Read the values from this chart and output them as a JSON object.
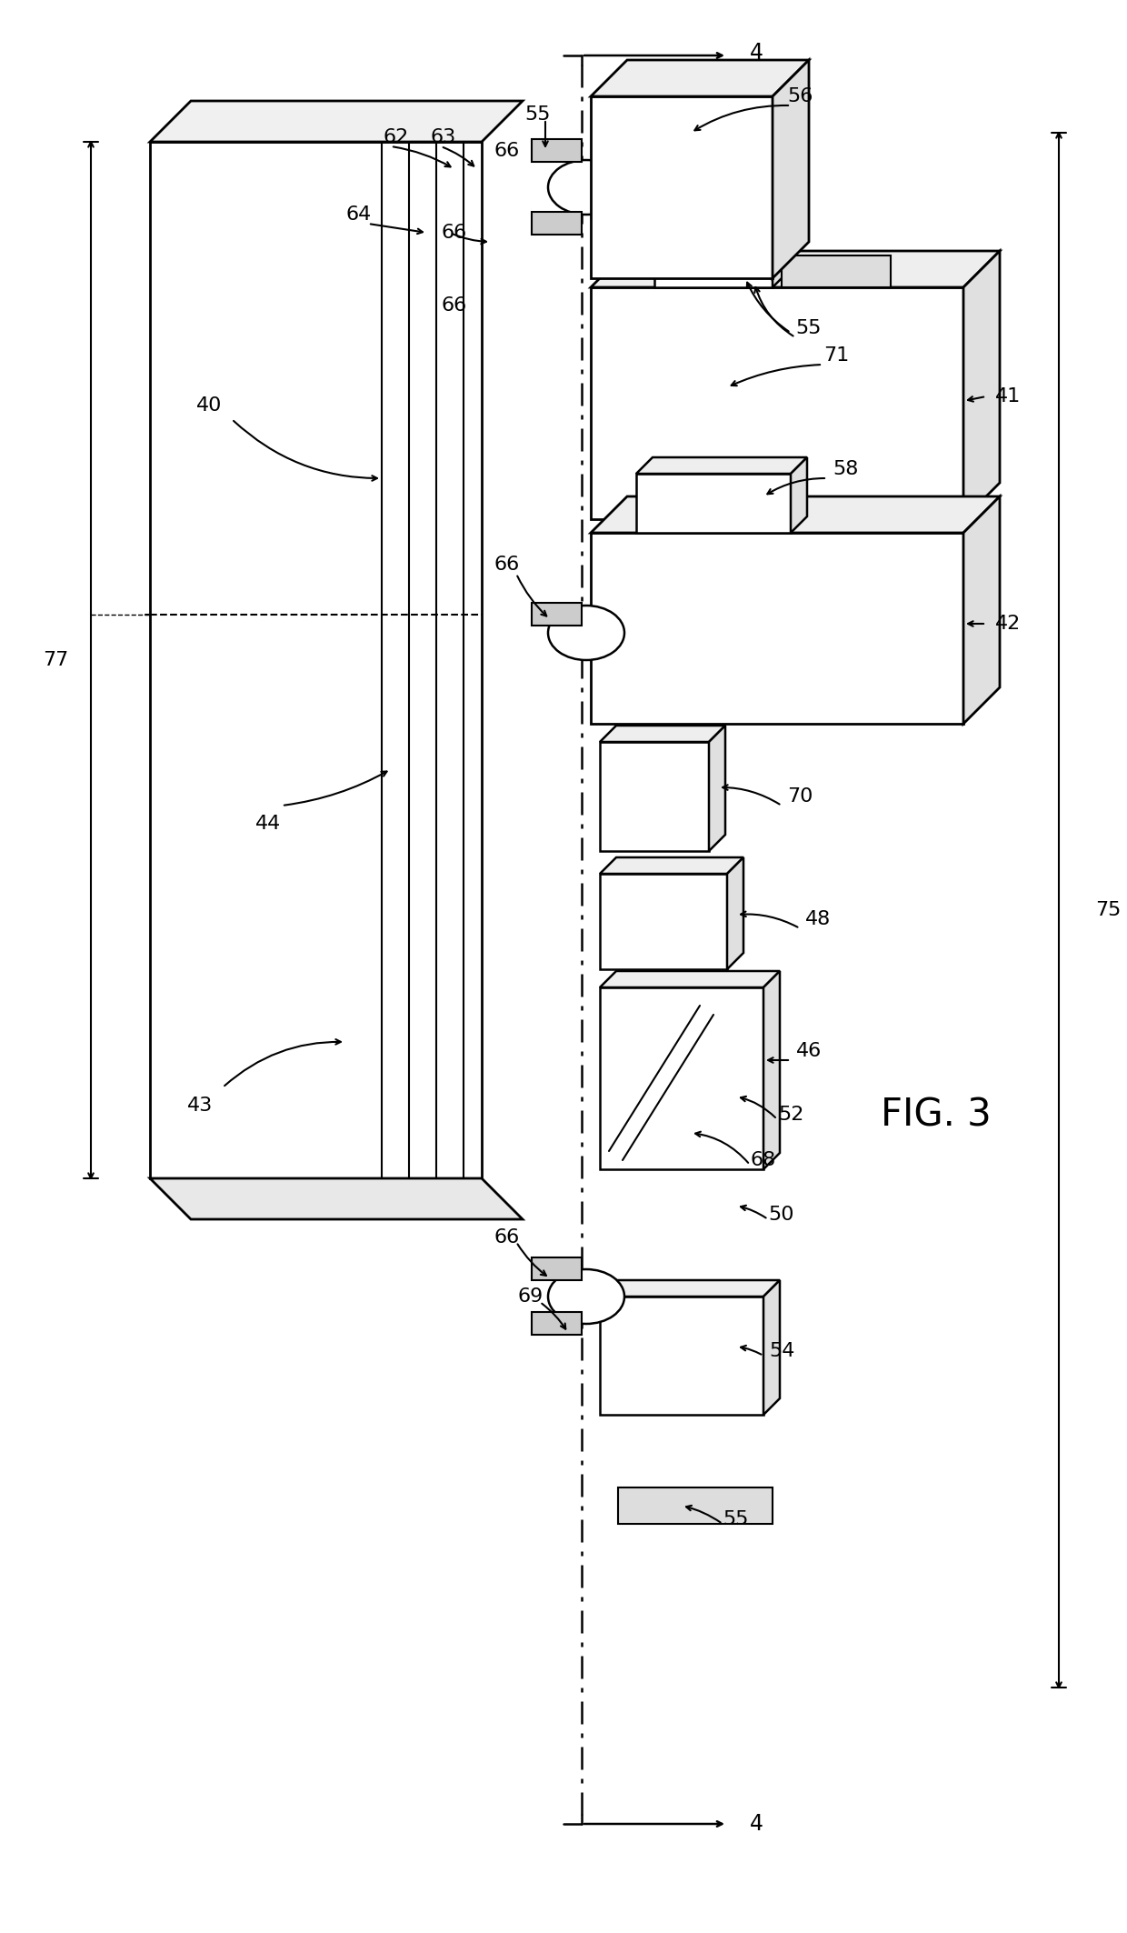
{
  "figsize": [
    12.4,
    21.26
  ],
  "dpi": 100,
  "bg": "#ffffff",
  "lc": "#000000",
  "fig_label": "FIG. 3",
  "labels": {
    "4": "4",
    "40": "40",
    "41": "41",
    "42": "42",
    "43": "43",
    "44": "44",
    "46": "46",
    "48": "48",
    "50": "50",
    "52": "52",
    "54": "54",
    "55": "55",
    "56": "56",
    "58": "58",
    "62": "62",
    "63": "63",
    "64": "64",
    "66": "66",
    "68": "68",
    "69": "69",
    "70": "70",
    "71": "71",
    "75": "75",
    "77": "77"
  }
}
